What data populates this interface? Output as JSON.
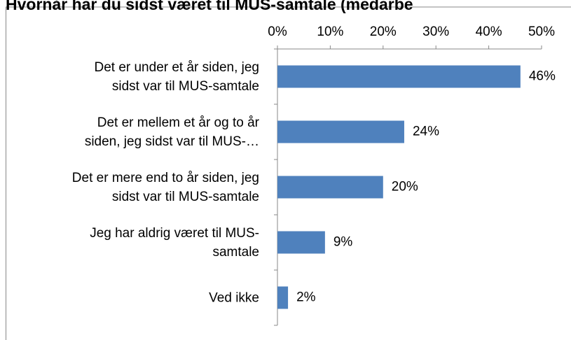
{
  "chart_data": {
    "type": "hbar",
    "title": "Hvornår har du sidst været til MUS-samtale (medarbe",
    "categories": [
      "Det er under et år siden, jeg\nsidst var til MUS-samtale",
      "Det er mellem et år og to år\nsiden, jeg sidst var til MUS-…",
      "Det er mere end to år siden, jeg\nsidst var til MUS-samtale",
      "Jeg har aldrig været til MUS-\nsamtale",
      "Ved ikke"
    ],
    "values": [
      46,
      24,
      20,
      9,
      2
    ],
    "value_labels": [
      "46%",
      "24%",
      "20%",
      "9%",
      "2%"
    ],
    "color": "#4f81bd",
    "xlim": [
      0,
      50
    ],
    "xticks": [
      {
        "value": 0,
        "label": "0%"
      },
      {
        "value": 10,
        "label": "10%"
      },
      {
        "value": 20,
        "label": "20%"
      },
      {
        "value": 30,
        "label": "30%"
      },
      {
        "value": 40,
        "label": "40%"
      },
      {
        "value": 50,
        "label": "50%"
      }
    ],
    "grid": false
  }
}
